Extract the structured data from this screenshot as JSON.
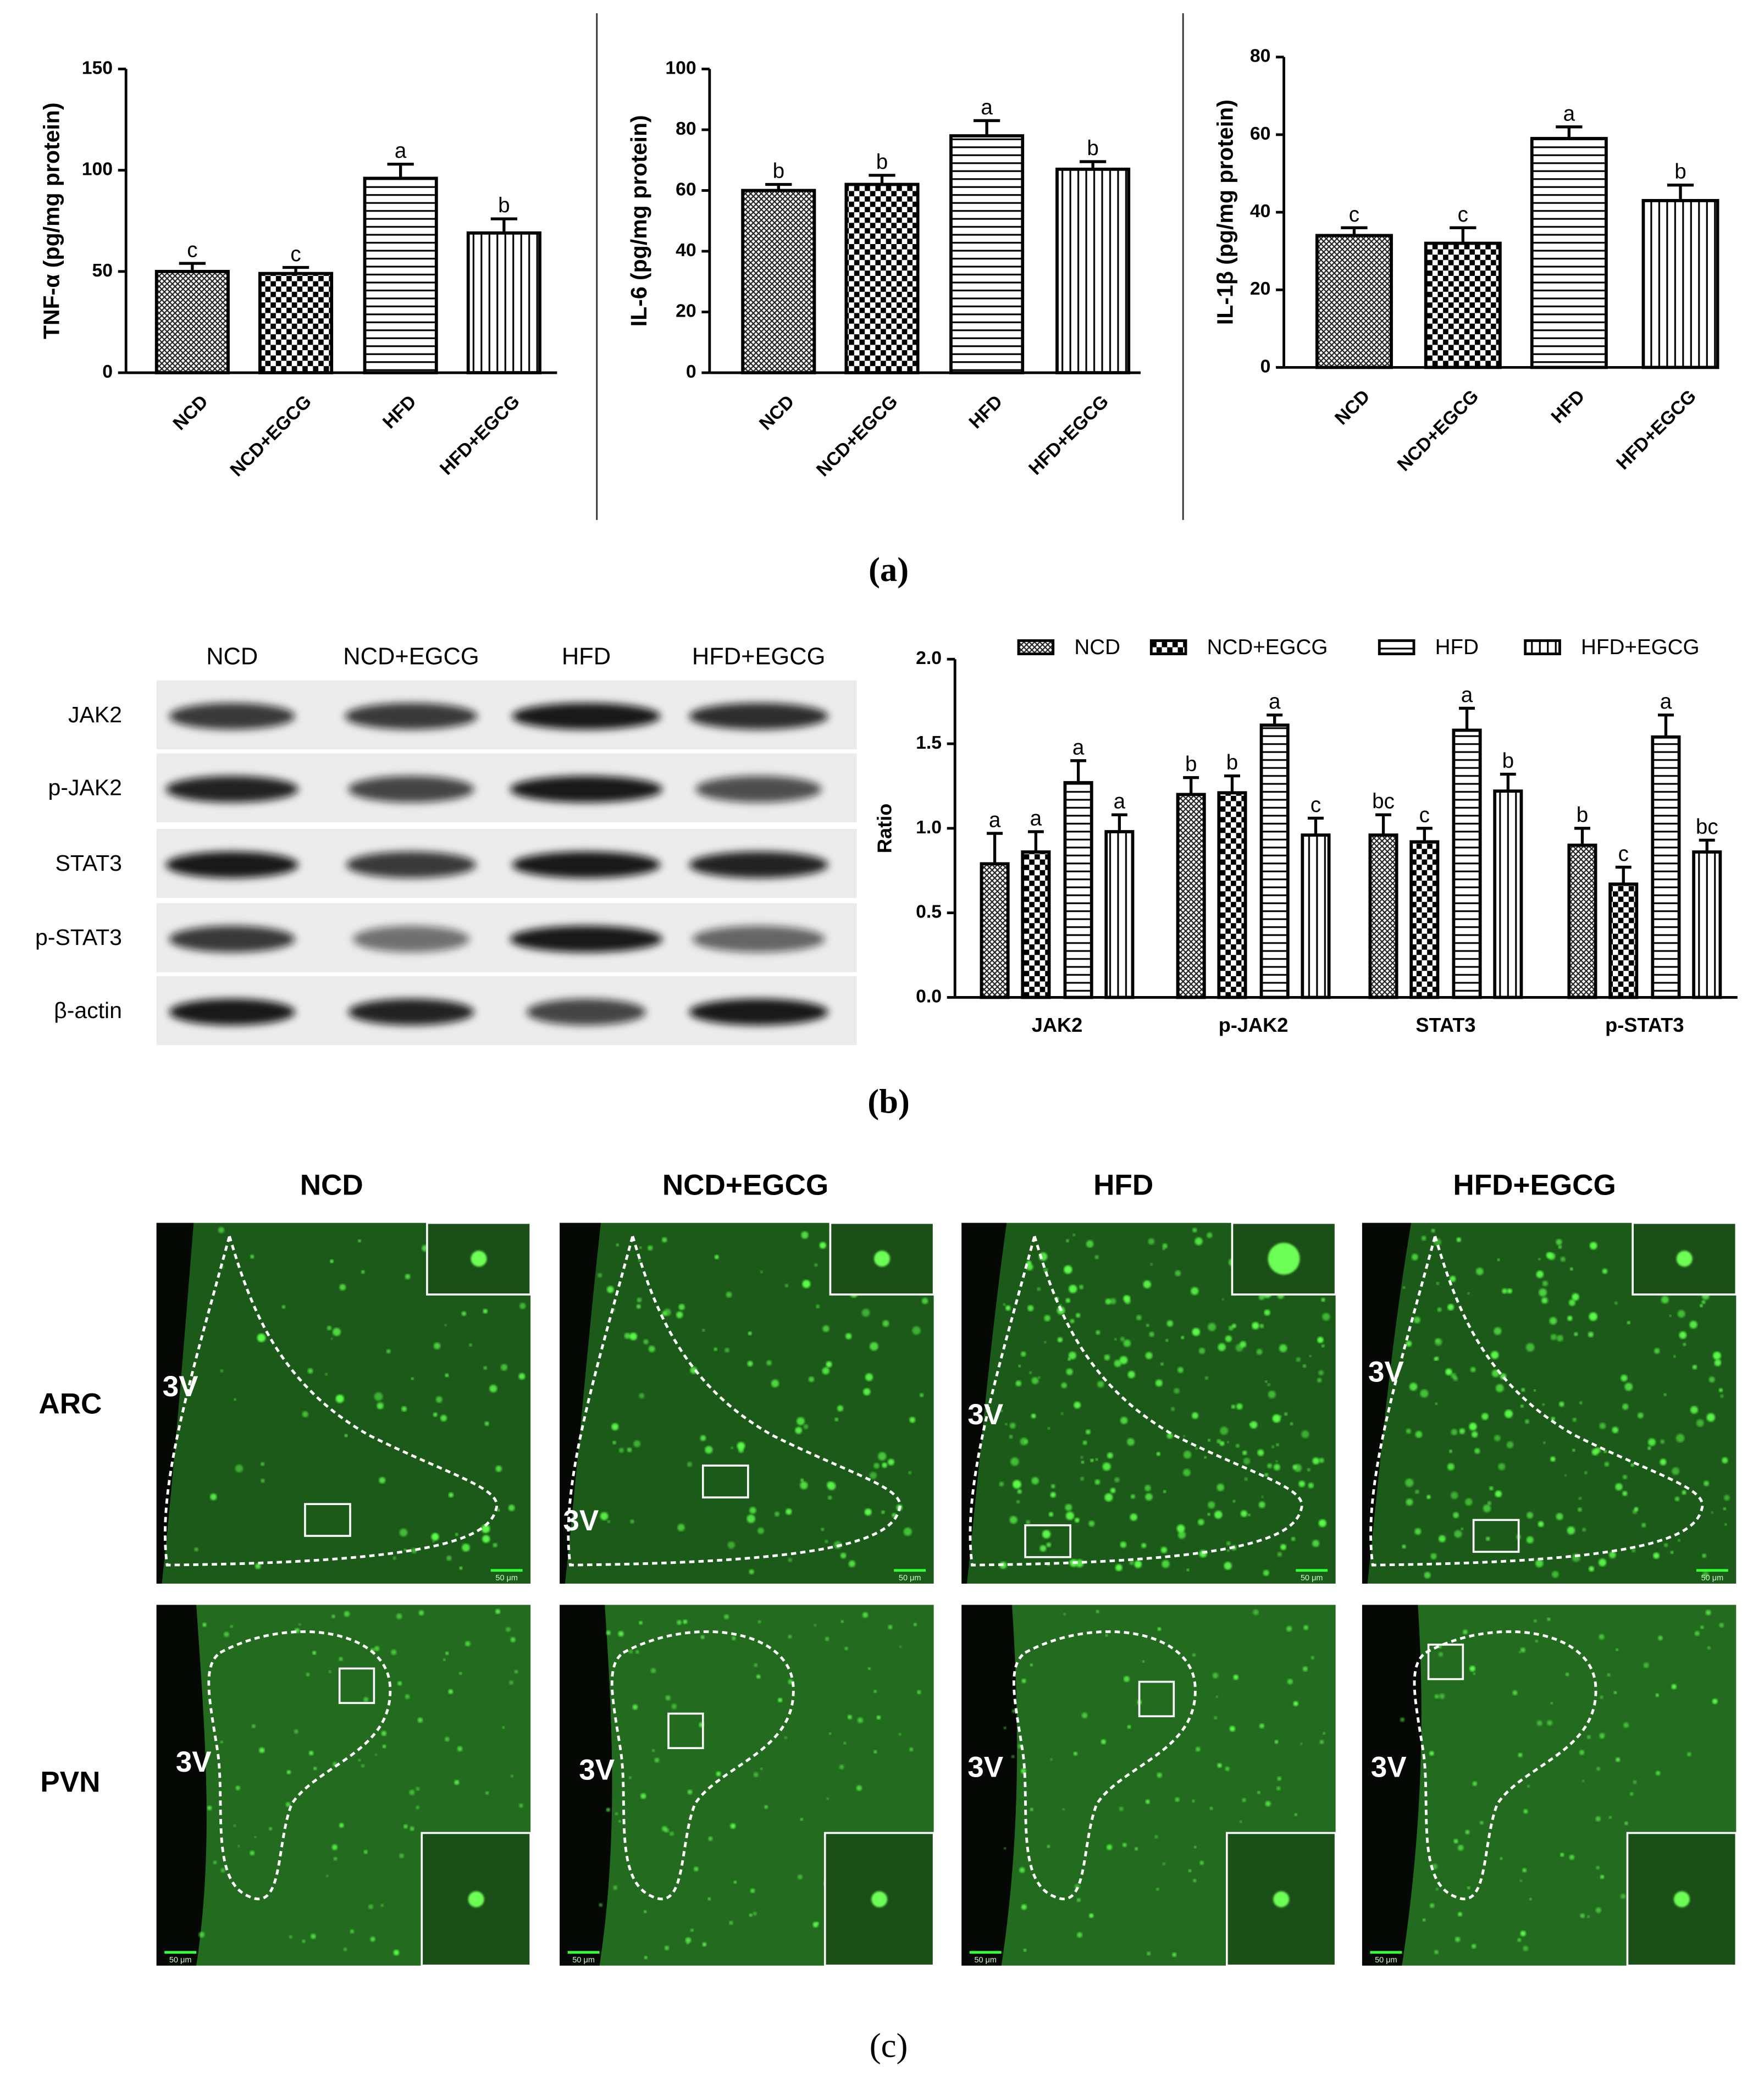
{
  "chart_data": [
    {
      "type": "bar",
      "ylabel": "TNF-α (pg/mg protein)",
      "categories": [
        "NCD",
        "NCD+EGCG",
        "HFD",
        "HFD+EGCG"
      ],
      "values": [
        50,
        49,
        96,
        69
      ],
      "errors": [
        4,
        3,
        7,
        7
      ],
      "significance": [
        "c",
        "c",
        "a",
        "b"
      ],
      "patterns": [
        "crosshatch",
        "checker",
        "hlines",
        "vlines"
      ],
      "color": "#000000",
      "ylim": [
        0,
        150
      ],
      "yticks": [
        0,
        50,
        100,
        150
      ]
    },
    {
      "type": "bar",
      "ylabel": "IL-6 (pg/mg protein)",
      "categories": [
        "NCD",
        "NCD+EGCG",
        "HFD",
        "HFD+EGCG"
      ],
      "values": [
        60,
        62,
        78,
        67
      ],
      "errors": [
        2,
        3,
        5,
        2.5
      ],
      "significance": [
        "b",
        "b",
        "a",
        "b"
      ],
      "patterns": [
        "crosshatch",
        "checker",
        "hlines",
        "vlines"
      ],
      "color": "#000000",
      "ylim": [
        0,
        100
      ],
      "yticks": [
        0,
        20,
        40,
        60,
        80,
        100
      ]
    },
    {
      "type": "bar",
      "ylabel": "IL-1β (pg/mg protein)",
      "categories": [
        "NCD",
        "NCD+EGCG",
        "HFD",
        "HFD+EGCG"
      ],
      "values": [
        34,
        32,
        59,
        43
      ],
      "errors": [
        2,
        4,
        3,
        4
      ],
      "significance": [
        "c",
        "c",
        "a",
        "b"
      ],
      "patterns": [
        "crosshatch",
        "checker",
        "hlines",
        "vlines"
      ],
      "color": "#000000",
      "ylim": [
        0,
        80
      ],
      "yticks": [
        0,
        20,
        40,
        60,
        80
      ]
    },
    {
      "type": "grouped_bar",
      "ylabel": "Ratio",
      "categories": [
        "JAK2",
        "p-JAK2",
        "STAT3",
        "p-STAT3"
      ],
      "legend": "top",
      "color": "#000000",
      "series": [
        {
          "name": "NCD",
          "pattern": "crosshatch",
          "values": [
            0.79,
            1.2,
            0.96,
            0.9
          ],
          "errors": [
            0.18,
            0.1,
            0.12,
            0.1
          ],
          "significance": [
            "a",
            "b",
            "bc",
            "b"
          ]
        },
        {
          "name": "NCD+EGCG",
          "pattern": "checker",
          "values": [
            0.86,
            1.21,
            0.92,
            0.67
          ],
          "errors": [
            0.12,
            0.1,
            0.08,
            0.1
          ],
          "significance": [
            "a",
            "b",
            "c",
            "c"
          ]
        },
        {
          "name": "HFD",
          "pattern": "hlines",
          "values": [
            1.27,
            1.61,
            1.58,
            1.54
          ],
          "errors": [
            0.13,
            0.06,
            0.13,
            0.13
          ],
          "significance": [
            "a",
            "a",
            "a",
            "a"
          ]
        },
        {
          "name": "HFD+EGCG",
          "pattern": "vlines",
          "values": [
            0.98,
            0.96,
            1.22,
            0.86
          ],
          "errors": [
            0.1,
            0.1,
            0.1,
            0.07
          ],
          "significance": [
            "a",
            "c",
            "b",
            "bc"
          ]
        }
      ],
      "ylim": [
        0,
        2
      ],
      "yticks": [
        {
          "value": 0,
          "label": "0.0"
        },
        {
          "value": 0.5,
          "label": "0.5"
        },
        {
          "value": 1,
          "label": "1.0"
        },
        {
          "value": 1.5,
          "label": "1.5"
        },
        {
          "value": 2,
          "label": "2.0"
        }
      ]
    }
  ],
  "panel_labels": [
    "(a)",
    "(b)",
    "(c)"
  ],
  "blot": {
    "columns": [
      "NCD",
      "NCD+EGCG",
      "HFD",
      "HFD+EGCG"
    ],
    "rows": [
      "JAK2",
      "p-JAK2",
      "STAT3",
      "p-STAT3",
      "β-actin"
    ]
  },
  "micrographs": {
    "columns": [
      "NCD",
      "NCD+EGCG",
      "HFD",
      "HFD+EGCG"
    ],
    "rows": [
      "ARC",
      "PVN"
    ],
    "ventricle_label": "3V",
    "scale_bar": "50 μm"
  }
}
